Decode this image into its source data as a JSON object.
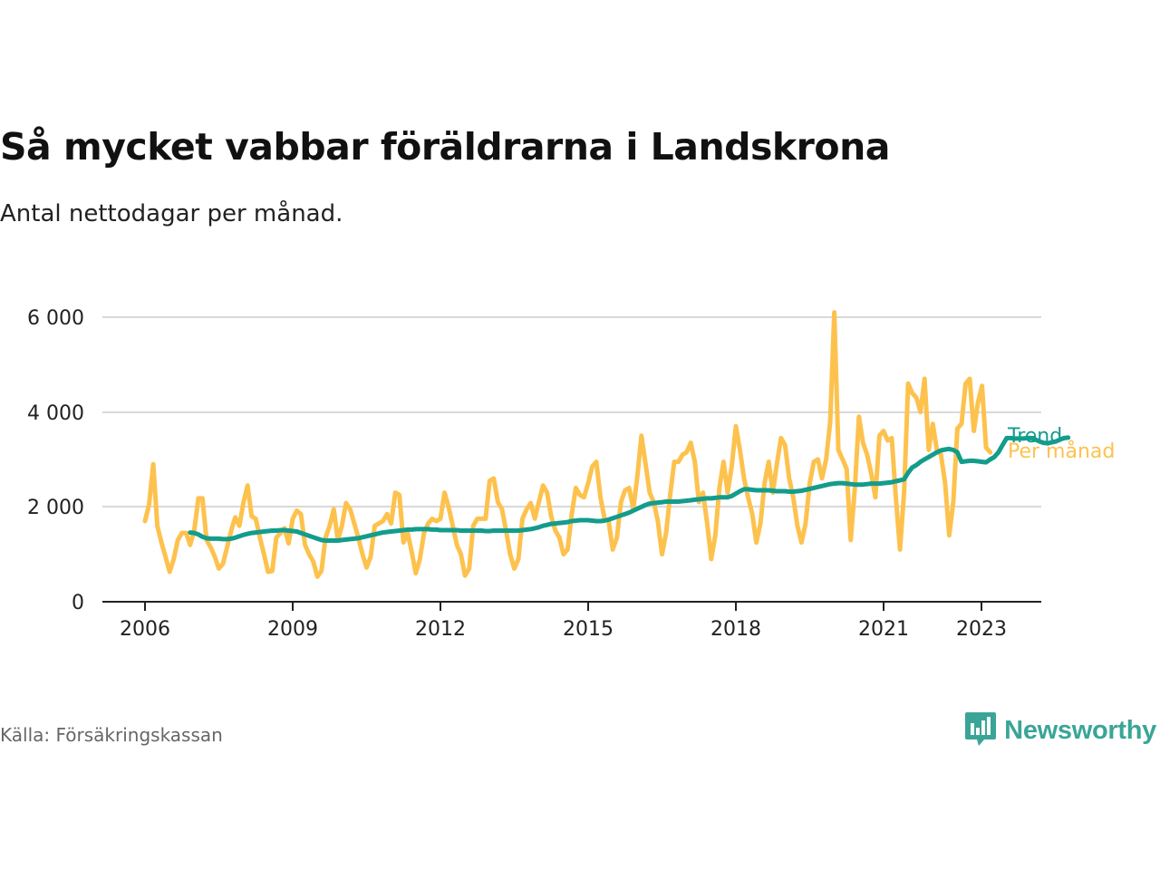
{
  "title": "Så mycket vabbar föräldrarna i Landskrona",
  "subtitle": "Antal nettodagar per månad.",
  "source": "Källa: Försäkringskassan",
  "brand": {
    "name": "Newsworthy",
    "icon": "newsworthy-logo-icon",
    "color": "#3aa597"
  },
  "chart_data": {
    "type": "line",
    "title": "Så mycket vabbar föräldrarna i Landskrona",
    "subtitle": "Antal nettodagar per månad.",
    "xlabel": "",
    "ylabel": "",
    "x_ticks": [
      "2006",
      "2009",
      "2012",
      "2015",
      "2018",
      "2021",
      "2023"
    ],
    "y_ticks": [
      "0",
      "2 000",
      "4 000",
      "6 000"
    ],
    "y_tick_values": [
      0,
      2000,
      4000,
      6000
    ],
    "ylim": [
      0,
      6200
    ],
    "xlim": [
      "2006-01",
      "2023-12"
    ],
    "grid": true,
    "legend": "direct labels at line ends",
    "series": [
      {
        "name": "Per månad",
        "color": "#fdc24e",
        "start": "2006-01",
        "values": [
          1700,
          2050,
          2900,
          1600,
          1250,
          950,
          630,
          900,
          1300,
          1450,
          1450,
          1200,
          1500,
          2180,
          2180,
          1300,
          1150,
          950,
          700,
          800,
          1150,
          1500,
          1780,
          1600,
          2100,
          2450,
          1800,
          1750,
          1350,
          1000,
          630,
          650,
          1350,
          1450,
          1550,
          1230,
          1750,
          1920,
          1850,
          1200,
          1000,
          850,
          530,
          650,
          1350,
          1600,
          1950,
          1300,
          1600,
          2080,
          1950,
          1650,
          1350,
          1000,
          720,
          950,
          1600,
          1650,
          1700,
          1850,
          1650,
          2300,
          2250,
          1250,
          1450,
          1050,
          600,
          900,
          1450,
          1650,
          1750,
          1700,
          1750,
          2300,
          2000,
          1600,
          1200,
          1000,
          550,
          700,
          1600,
          1750,
          1750,
          1750,
          2550,
          2600,
          2100,
          1950,
          1500,
          1000,
          700,
          900,
          1750,
          1950,
          2080,
          1750,
          2100,
          2450,
          2300,
          1800,
          1500,
          1350,
          1000,
          1100,
          1850,
          2400,
          2250,
          2200,
          2500,
          2850,
          2950,
          2200,
          1750,
          1700,
          1100,
          1350,
          2100,
          2350,
          2400,
          1950,
          2650,
          3500,
          2900,
          2300,
          2100,
          1700,
          1000,
          1450,
          2250,
          2950,
          2950,
          3100,
          3150,
          3350,
          2950,
          2100,
          2300,
          1650,
          900,
          1400,
          2400,
          2950,
          2300,
          2850,
          3700,
          3200,
          2600,
          2200,
          1850,
          1250,
          1650,
          2500,
          2950,
          2300,
          2900,
          3450,
          3300,
          2600,
          2200,
          1600,
          1250,
          1650,
          2500,
          2950,
          3000,
          2600,
          3000,
          3800,
          6100,
          3200,
          3000,
          2800,
          1300,
          2400,
          3900,
          3350,
          3100,
          2700,
          2200,
          3500,
          3600,
          3400,
          3450,
          2200,
          1100,
          2300,
          4600,
          4400,
          4300,
          4000,
          4700,
          3200,
          3750,
          3200,
          3100,
          2500,
          1400,
          2100,
          3650,
          3750,
          4600,
          4700,
          3600,
          4200,
          4550,
          3250,
          3150
        ]
      },
      {
        "name": "Trend",
        "color": "#139c8c",
        "start": "2006-12",
        "values": [
          1460,
          1450,
          1420,
          1370,
          1340,
          1330,
          1330,
          1330,
          1320,
          1320,
          1330,
          1350,
          1380,
          1410,
          1430,
          1450,
          1460,
          1470,
          1480,
          1490,
          1500,
          1500,
          1510,
          1510,
          1500,
          1490,
          1480,
          1450,
          1420,
          1390,
          1360,
          1330,
          1300,
          1290,
          1290,
          1290,
          1290,
          1300,
          1310,
          1320,
          1330,
          1340,
          1360,
          1380,
          1400,
          1420,
          1440,
          1460,
          1470,
          1480,
          1490,
          1500,
          1510,
          1520,
          1520,
          1530,
          1530,
          1530,
          1530,
          1520,
          1520,
          1510,
          1510,
          1510,
          1510,
          1510,
          1500,
          1500,
          1500,
          1500,
          1500,
          1500,
          1490,
          1490,
          1500,
          1500,
          1500,
          1500,
          1500,
          1500,
          1500,
          1510,
          1520,
          1530,
          1550,
          1570,
          1600,
          1620,
          1640,
          1650,
          1660,
          1670,
          1680,
          1700,
          1710,
          1720,
          1720,
          1720,
          1710,
          1700,
          1700,
          1710,
          1730,
          1760,
          1790,
          1820,
          1850,
          1880,
          1920,
          1960,
          2000,
          2040,
          2070,
          2080,
          2090,
          2100,
          2110,
          2110,
          2110,
          2110,
          2120,
          2130,
          2140,
          2150,
          2160,
          2170,
          2180,
          2180,
          2190,
          2200,
          2200,
          2200,
          2230,
          2280,
          2330,
          2370,
          2370,
          2360,
          2350,
          2350,
          2350,
          2350,
          2340,
          2330,
          2330,
          2330,
          2320,
          2320,
          2330,
          2340,
          2360,
          2380,
          2400,
          2420,
          2440,
          2460,
          2480,
          2490,
          2500,
          2500,
          2490,
          2480,
          2470,
          2470,
          2470,
          2480,
          2490,
          2490,
          2490,
          2500,
          2510,
          2520,
          2540,
          2560,
          2580,
          2720,
          2830,
          2880,
          2950,
          3000,
          3050,
          3100,
          3150,
          3190,
          3210,
          3220,
          3200,
          3150,
          2950,
          2960,
          2970,
          2970,
          2960,
          2950,
          2940,
          3000,
          3050,
          3150,
          3300,
          3450,
          3450,
          3440,
          3440,
          3440,
          3450,
          3450,
          3420,
          3380,
          3350,
          3340,
          3360,
          3380,
          3420,
          3450,
          3460
        ]
      }
    ]
  }
}
